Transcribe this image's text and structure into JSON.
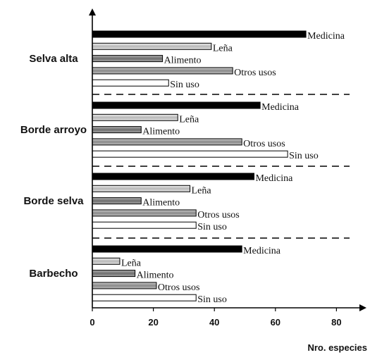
{
  "chart_data": {
    "type": "bar",
    "orientation": "horizontal",
    "xlabel": "Nro. especies",
    "ylabel": "",
    "xlim": [
      0,
      90
    ],
    "xticks": [
      0,
      20,
      40,
      60,
      80
    ],
    "grid": false,
    "legend": "none",
    "group_separators": "dashed",
    "categories": [
      "Selva alta",
      "Borde arroyo",
      "Borde selva",
      "Barbecho"
    ],
    "series": [
      {
        "name": "Medicina",
        "color": "#000000",
        "values": [
          70,
          55,
          53,
          49
        ]
      },
      {
        "name": "Leña",
        "color": "#9a9a9a",
        "values": [
          39,
          28,
          32,
          9
        ]
      },
      {
        "name": "Alimento",
        "color": "#808080",
        "values": [
          23,
          16,
          16,
          14
        ]
      },
      {
        "name": "Otros usos",
        "color": "#c4c4c4",
        "values": [
          46,
          49,
          34,
          21
        ]
      },
      {
        "name": "Sin uso",
        "color": "#ffffff",
        "values": [
          25,
          64,
          34,
          34
        ]
      }
    ]
  }
}
